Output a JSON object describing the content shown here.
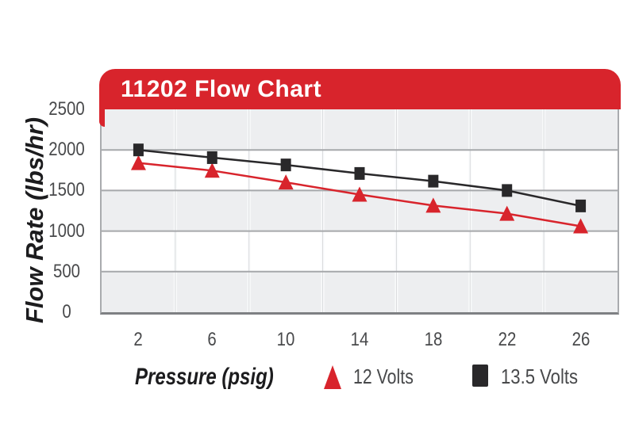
{
  "header": {
    "title": "11202 Flow Chart"
  },
  "chart_data": {
    "type": "line",
    "title": "11202 Flow Chart",
    "xlabel": "Pressure (psig)",
    "ylabel": "Flow Rate (lbs/hr)",
    "x": [
      2,
      6,
      10,
      14,
      18,
      22,
      26
    ],
    "x_tick_labels": [
      "2",
      "6",
      "10",
      "14",
      "18",
      "22",
      "26"
    ],
    "y_tick_labels_top_to_bottom": [
      "2500",
      "2000",
      "1500",
      "1000",
      "500",
      "0"
    ],
    "ylim": [
      0,
      2500
    ],
    "grid": "horizontal gridlines every 500 with alternating gray/white bands; light vertical category separators",
    "legend_position": "bottom",
    "series": [
      {
        "name": "12 Volts",
        "marker": "triangle",
        "color": "#D8242C",
        "values": [
          1840,
          1745,
          1600,
          1450,
          1315,
          1215,
          1060
        ]
      },
      {
        "name": "13.5 Volts",
        "marker": "square",
        "color": "#29282A",
        "values": [
          2000,
          1905,
          1815,
          1710,
          1615,
          1500,
          1310
        ]
      }
    ]
  },
  "style": {
    "accent_red": "#D8242C",
    "series_black": "#29282A",
    "band_gray": "#EDEEF0",
    "grid_line": "#A6A8AB",
    "grid_vline_soft": "#FAFBFC",
    "grid_vline": "#D8DADC",
    "border_gray": "#A9ABAE",
    "axis_bottom": "#7E8083",
    "tick_text": "#48494B",
    "title_text": "#1C1C1E",
    "header_text": "#FFFFFF"
  }
}
